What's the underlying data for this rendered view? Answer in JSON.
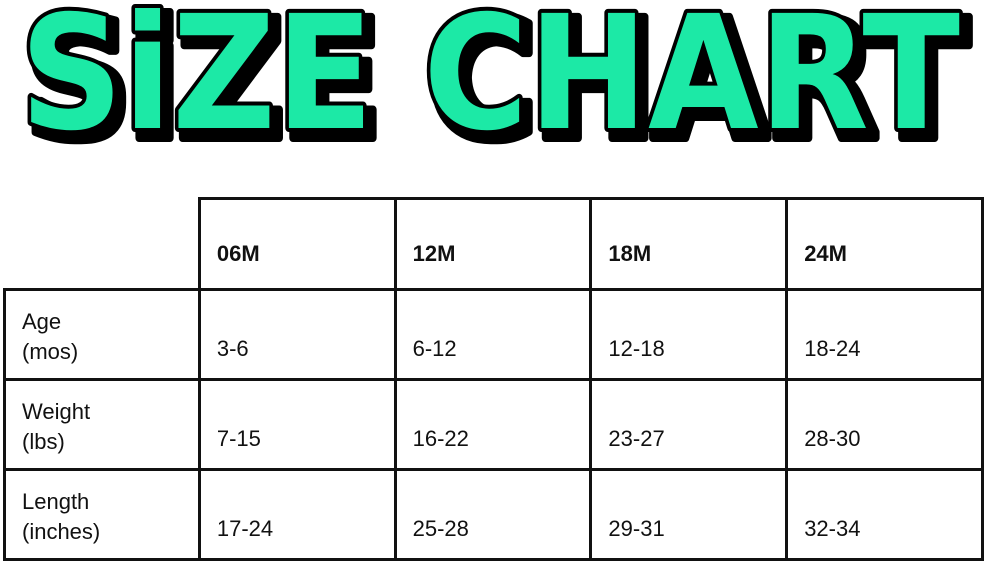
{
  "title": "SiZE CHART",
  "title_color": "#1de9a6",
  "table": {
    "columns": [
      "06M",
      "12M",
      "18M",
      "24M"
    ],
    "rows": [
      {
        "label_line1": "Age",
        "label_line2": "(mos)",
        "values": [
          "3-6",
          "6-12",
          "12-18",
          "18-24"
        ]
      },
      {
        "label_line1": "Weight",
        "label_line2": "(lbs)",
        "values": [
          "7-15",
          "16-22",
          "23-27",
          "28-30"
        ]
      },
      {
        "label_line1": "Length",
        "label_line2": "(inches)",
        "values": [
          "17-24",
          "25-28",
          "29-31",
          "32-34"
        ]
      }
    ]
  }
}
